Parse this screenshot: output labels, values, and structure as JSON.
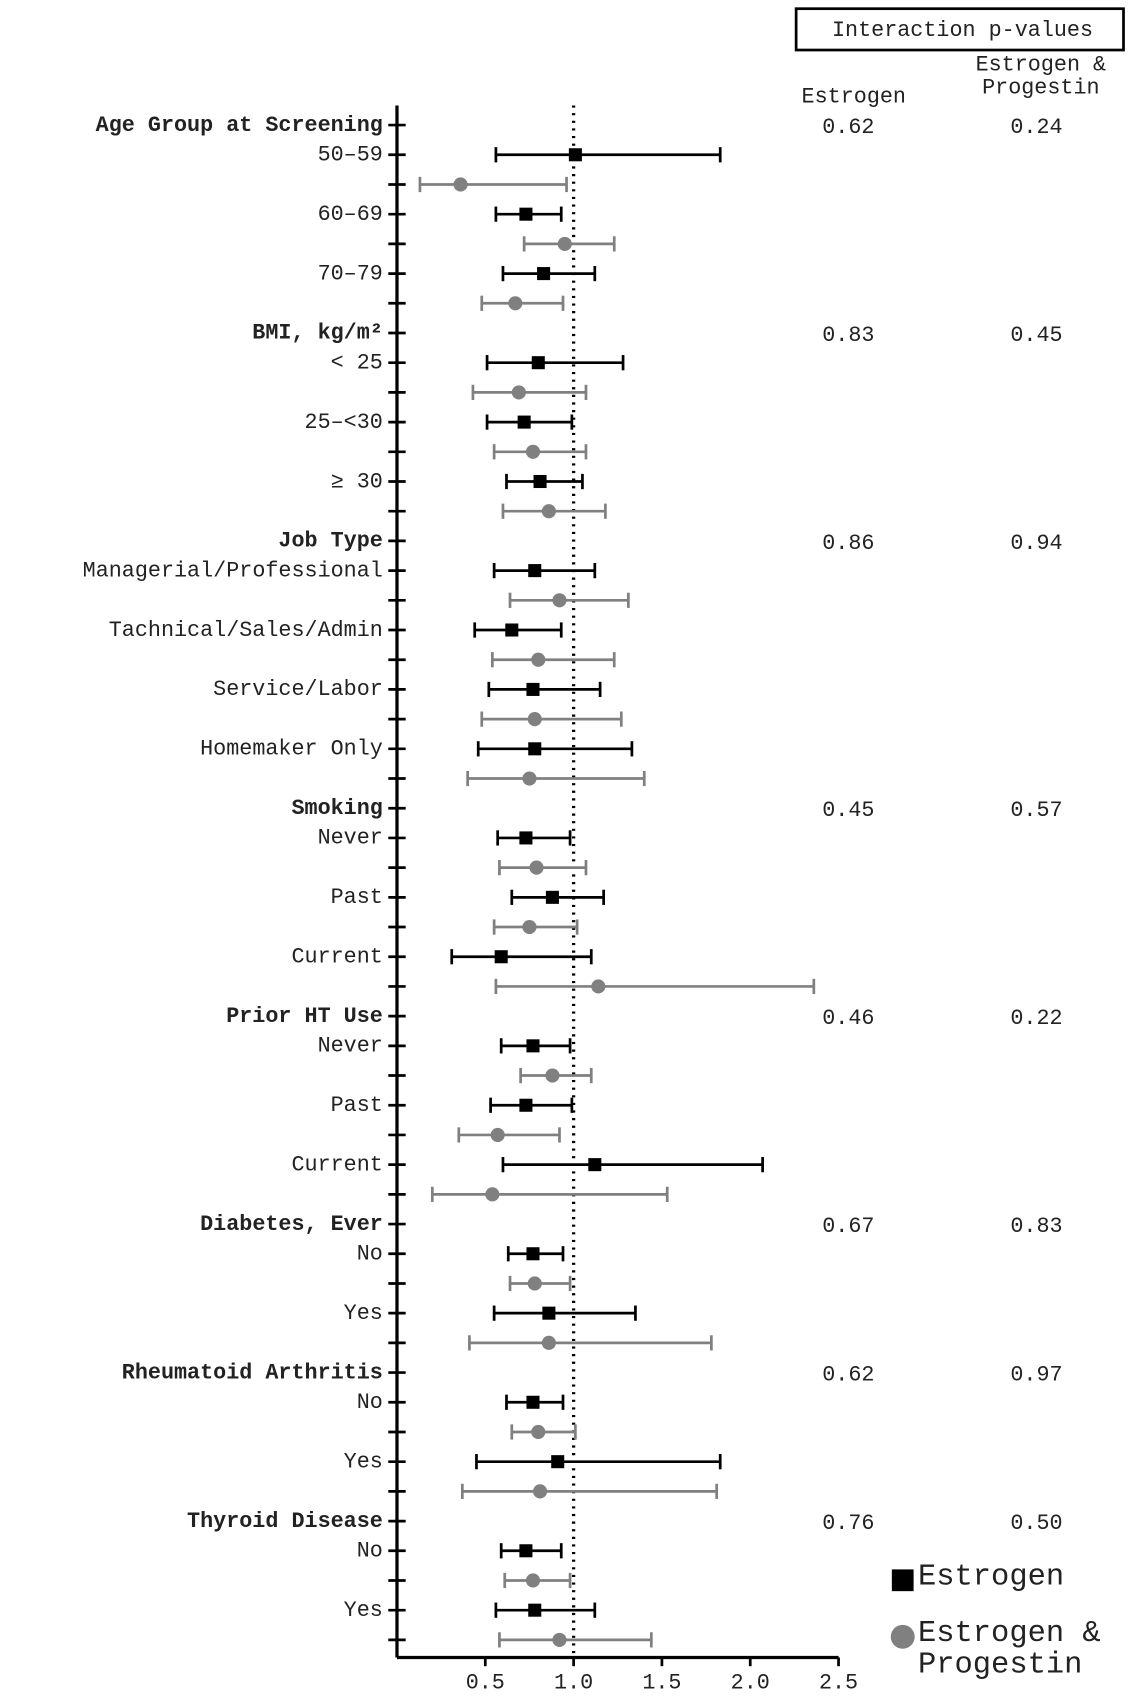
{
  "chart_data": {
    "type": "forest",
    "p_value_title": "Interaction p-values",
    "series": [
      {
        "name": "Estrogen",
        "color": "#000000",
        "marker": "square"
      },
      {
        "name": "Estrogen & Progestin",
        "color": "#808080",
        "marker": "circle"
      }
    ],
    "xlim": [
      0,
      2.5
    ],
    "xticks": [
      0.5,
      {
        "value": 1,
        "label": "1.0"
      },
      1.5,
      {
        "value": 2,
        "label": "2.0"
      },
      2.5
    ],
    "reference_line": 1,
    "groups": [
      {
        "name": "Age Group at Screening",
        "p_values": [
          "0.62",
          "0.24"
        ],
        "subgroups": [
          {
            "label": "50–59",
            "estimates": [
              {
                "value": 1.01,
                "lower": 0.56,
                "upper": 1.83
              },
              {
                "value": 0.36,
                "lower": 0.13,
                "upper": 0.96
              }
            ]
          },
          {
            "label": "60–69",
            "estimates": [
              {
                "value": 0.73,
                "lower": 0.56,
                "upper": 0.93
              },
              {
                "value": 0.95,
                "lower": 0.72,
                "upper": 1.23
              }
            ]
          },
          {
            "label": "70–79",
            "estimates": [
              {
                "value": 0.83,
                "lower": 0.6,
                "upper": 1.12
              },
              {
                "value": 0.67,
                "lower": 0.48,
                "upper": 0.94
              }
            ]
          }
        ]
      },
      {
        "name": "BMI, kg/m²",
        "p_values": [
          "0.83",
          "0.45"
        ],
        "subgroups": [
          {
            "label": "< 25",
            "estimates": [
              {
                "value": 0.8,
                "lower": 0.51,
                "upper": 1.28
              },
              {
                "value": 0.69,
                "lower": 0.43,
                "upper": 1.07
              }
            ]
          },
          {
            "label": "25–<30",
            "estimates": [
              {
                "value": 0.72,
                "lower": 0.51,
                "upper": 0.99
              },
              {
                "value": 0.77,
                "lower": 0.55,
                "upper": 1.07
              }
            ]
          },
          {
            "label": "≥ 30",
            "estimates": [
              {
                "value": 0.81,
                "lower": 0.62,
                "upper": 1.05
              },
              {
                "value": 0.86,
                "lower": 0.6,
                "upper": 1.18
              }
            ]
          }
        ]
      },
      {
        "name": "Job Type",
        "p_values": [
          "0.86",
          "0.94"
        ],
        "subgroups": [
          {
            "label": "Managerial/Professional",
            "estimates": [
              {
                "value": 0.78,
                "lower": 0.55,
                "upper": 1.12
              },
              {
                "value": 0.92,
                "lower": 0.64,
                "upper": 1.31
              }
            ]
          },
          {
            "label": "Tachnical/Sales/Admin",
            "estimates": [
              {
                "value": 0.65,
                "lower": 0.44,
                "upper": 0.93
              },
              {
                "value": 0.8,
                "lower": 0.54,
                "upper": 1.23
              }
            ]
          },
          {
            "label": "Service/Labor",
            "estimates": [
              {
                "value": 0.77,
                "lower": 0.52,
                "upper": 1.15
              },
              {
                "value": 0.78,
                "lower": 0.48,
                "upper": 1.27
              }
            ]
          },
          {
            "label": "Homemaker Only",
            "estimates": [
              {
                "value": 0.78,
                "lower": 0.46,
                "upper": 1.33
              },
              {
                "value": 0.75,
                "lower": 0.4,
                "upper": 1.4
              }
            ]
          }
        ]
      },
      {
        "name": "Smoking",
        "p_values": [
          "0.45",
          "0.57"
        ],
        "subgroups": [
          {
            "label": "Never",
            "estimates": [
              {
                "value": 0.73,
                "lower": 0.57,
                "upper": 0.98
              },
              {
                "value": 0.79,
                "lower": 0.58,
                "upper": 1.07
              }
            ]
          },
          {
            "label": "Past",
            "estimates": [
              {
                "value": 0.88,
                "lower": 0.65,
                "upper": 1.17
              },
              {
                "value": 0.75,
                "lower": 0.55,
                "upper": 1.02
              }
            ]
          },
          {
            "label": "Current",
            "estimates": [
              {
                "value": 0.59,
                "lower": 0.31,
                "upper": 1.1
              },
              {
                "value": 1.14,
                "lower": 0.56,
                "upper": 2.36
              }
            ]
          }
        ]
      },
      {
        "name": "Prior HT Use",
        "p_values": [
          "0.46",
          "0.22"
        ],
        "subgroups": [
          {
            "label": "Never",
            "estimates": [
              {
                "value": 0.77,
                "lower": 0.59,
                "upper": 0.98
              },
              {
                "value": 0.88,
                "lower": 0.7,
                "upper": 1.1
              }
            ]
          },
          {
            "label": "Past",
            "estimates": [
              {
                "value": 0.73,
                "lower": 0.53,
                "upper": 0.99
              },
              {
                "value": 0.57,
                "lower": 0.35,
                "upper": 0.92
              }
            ]
          },
          {
            "label": "Current",
            "estimates": [
              {
                "value": 1.12,
                "lower": 0.6,
                "upper": 2.07
              },
              {
                "value": 0.54,
                "lower": 0.2,
                "upper": 1.53
              }
            ]
          }
        ]
      },
      {
        "name": "Diabetes, Ever",
        "p_values": [
          "0.67",
          "0.83"
        ],
        "subgroups": [
          {
            "label": "No",
            "estimates": [
              {
                "value": 0.77,
                "lower": 0.63,
                "upper": 0.94
              },
              {
                "value": 0.78,
                "lower": 0.64,
                "upper": 0.98
              }
            ]
          },
          {
            "label": "Yes",
            "estimates": [
              {
                "value": 0.86,
                "lower": 0.55,
                "upper": 1.35
              },
              {
                "value": 0.86,
                "lower": 0.41,
                "upper": 1.78
              }
            ]
          }
        ]
      },
      {
        "name": "Rheumatoid Arthritis",
        "p_values": [
          "0.62",
          "0.97"
        ],
        "subgroups": [
          {
            "label": "No",
            "estimates": [
              {
                "value": 0.77,
                "lower": 0.62,
                "upper": 0.94
              },
              {
                "value": 0.8,
                "lower": 0.65,
                "upper": 1.01
              }
            ]
          },
          {
            "label": "Yes",
            "estimates": [
              {
                "value": 0.91,
                "lower": 0.45,
                "upper": 1.83
              },
              {
                "value": 0.81,
                "lower": 0.37,
                "upper": 1.81
              }
            ]
          }
        ]
      },
      {
        "name": "Thyroid Disease",
        "p_values": [
          "0.76",
          "0.50"
        ],
        "subgroups": [
          {
            "label": "No",
            "estimates": [
              {
                "value": 0.73,
                "lower": 0.59,
                "upper": 0.93
              },
              {
                "value": 0.77,
                "lower": 0.61,
                "upper": 0.98
              }
            ]
          },
          {
            "label": "Yes",
            "estimates": [
              {
                "value": 0.78,
                "lower": 0.56,
                "upper": 1.12
              },
              {
                "value": 0.92,
                "lower": 0.58,
                "upper": 1.44
              }
            ]
          }
        ]
      }
    ]
  }
}
